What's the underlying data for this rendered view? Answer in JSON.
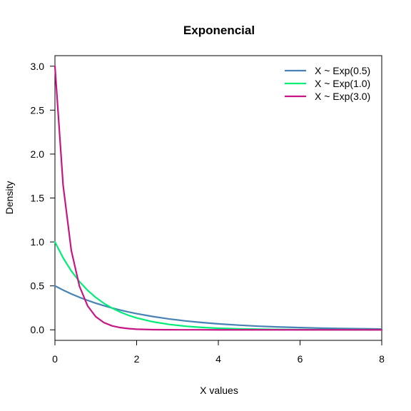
{
  "chart_data": {
    "type": "line",
    "title": "Exponencial",
    "xlabel": "X values",
    "ylabel": "Density",
    "xlim": [
      0,
      8
    ],
    "ylim": [
      -0.12,
      3.12
    ],
    "xticks": [
      0,
      2,
      4,
      6,
      8
    ],
    "yticks": [
      0.0,
      0.5,
      1.0,
      1.5,
      2.0,
      2.5,
      3.0
    ],
    "xtick_labels": [
      "0",
      "2",
      "4",
      "6",
      "8"
    ],
    "ytick_labels": [
      "0.0",
      "0.5",
      "1.0",
      "1.5",
      "2.0",
      "2.5",
      "3.0"
    ],
    "grid": false,
    "legend_position": "top-right",
    "x": [
      0,
      0.2,
      0.4,
      0.6,
      0.8,
      1.0,
      1.2,
      1.4,
      1.6,
      1.8,
      2.0,
      2.4,
      2.8,
      3.2,
      3.6,
      4.0,
      4.5,
      5.0,
      5.5,
      6.0,
      6.5,
      7.0,
      7.5,
      8.0
    ],
    "series": [
      {
        "name": "X ~ Exp(0.5)",
        "color": "#4682b4",
        "values": [
          0.5,
          0.452,
          0.409,
          0.37,
          0.335,
          0.303,
          0.274,
          0.248,
          0.225,
          0.203,
          0.184,
          0.151,
          0.123,
          0.101,
          0.083,
          0.068,
          0.053,
          0.041,
          0.032,
          0.025,
          0.019,
          0.015,
          0.012,
          0.009
        ]
      },
      {
        "name": "X ~ Exp(1.0)",
        "color": "#00ee76",
        "values": [
          1.0,
          0.819,
          0.67,
          0.549,
          0.449,
          0.368,
          0.301,
          0.247,
          0.202,
          0.165,
          0.135,
          0.091,
          0.061,
          0.041,
          0.027,
          0.018,
          0.011,
          0.007,
          0.004,
          0.002,
          0.0015,
          0.0009,
          0.0006,
          0.0003
        ]
      },
      {
        "name": "X ~ Exp(3.0)",
        "color": "#c71585",
        "values": [
          3.0,
          1.646,
          0.904,
          0.496,
          0.272,
          0.149,
          0.082,
          0.045,
          0.025,
          0.014,
          0.007,
          0.002,
          0.0007,
          0.0002,
          0.0001,
          0.0,
          0.0,
          0.0,
          0.0,
          0.0,
          0.0,
          0.0,
          0.0,
          0.0
        ]
      }
    ]
  }
}
